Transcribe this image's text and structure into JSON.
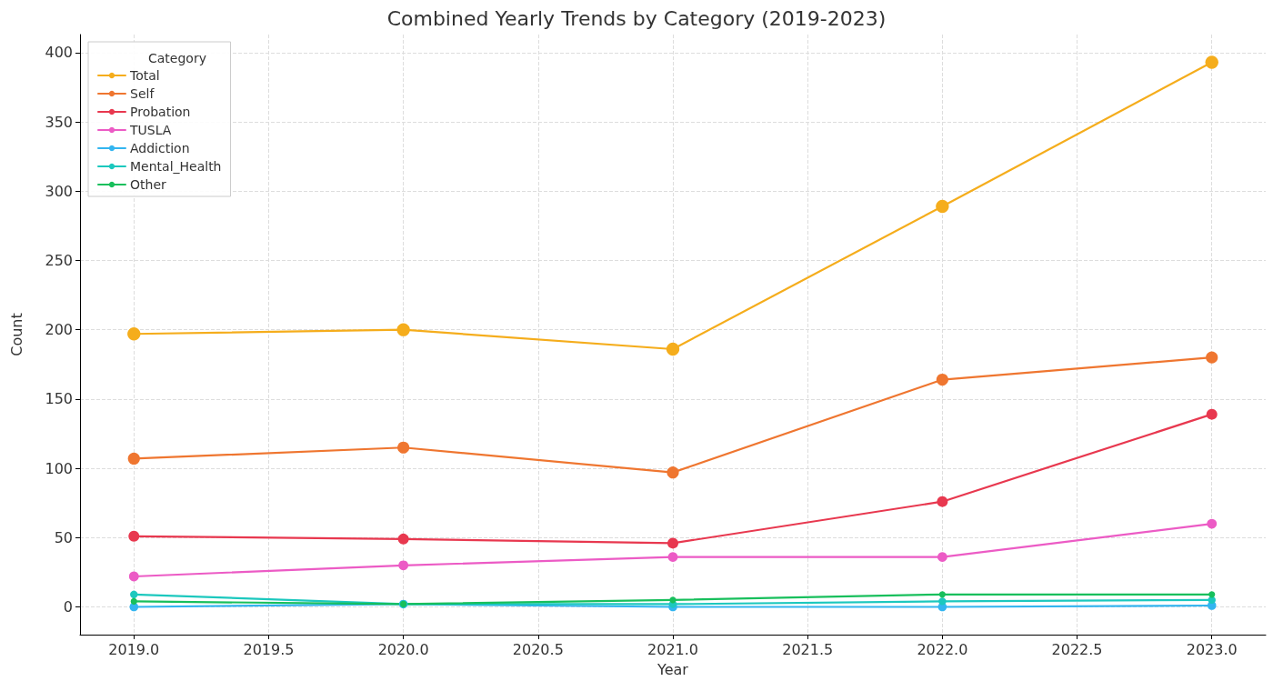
{
  "chart_data": {
    "type": "line",
    "title": "Combined Yearly Trends by Category (2019-2023)",
    "xlabel": "Year",
    "ylabel": "Count",
    "legend_title": "Category",
    "x": [
      2019,
      2020,
      2021,
      2022,
      2023
    ],
    "series": [
      {
        "name": "Total",
        "color": "#f5ad1c",
        "values": [
          197,
          200,
          186,
          289,
          393
        ]
      },
      {
        "name": "Self",
        "color": "#ef7630",
        "values": [
          107,
          115,
          97,
          164,
          180
        ]
      },
      {
        "name": "Probation",
        "color": "#e8384f",
        "values": [
          51,
          49,
          46,
          76,
          139
        ]
      },
      {
        "name": "TUSLA",
        "color": "#ec5bc5",
        "values": [
          22,
          30,
          36,
          36,
          60
        ]
      },
      {
        "name": "Addiction",
        "color": "#33b5f0",
        "values": [
          0,
          2,
          0,
          0,
          1
        ]
      },
      {
        "name": "Mental_Health",
        "color": "#1cc8be",
        "values": [
          9,
          2,
          2,
          4,
          5
        ]
      },
      {
        "name": "Other",
        "color": "#18bf5c",
        "values": [
          4,
          2,
          5,
          9,
          9
        ]
      }
    ],
    "xlim": [
      2018.8,
      2023.2
    ],
    "xticks": [
      {
        "value": 2019,
        "label": "2019.0"
      },
      {
        "value": 2019.5,
        "label": "2019.5"
      },
      {
        "value": 2020,
        "label": "2020.0"
      },
      {
        "value": 2020.5,
        "label": "2020.5"
      },
      {
        "value": 2021,
        "label": "2021.0"
      },
      {
        "value": 2021.5,
        "label": "2021.5"
      },
      {
        "value": 2022,
        "label": "2022.0"
      },
      {
        "value": 2022.5,
        "label": "2022.5"
      },
      {
        "value": 2023,
        "label": "2023.0"
      }
    ],
    "ylim": [
      -20,
      413
    ],
    "yticks": [
      0,
      50,
      100,
      150,
      200,
      250,
      300,
      350,
      400
    ],
    "grid": true,
    "legend": "top left",
    "marker": "circle",
    "line_style": "solid"
  }
}
